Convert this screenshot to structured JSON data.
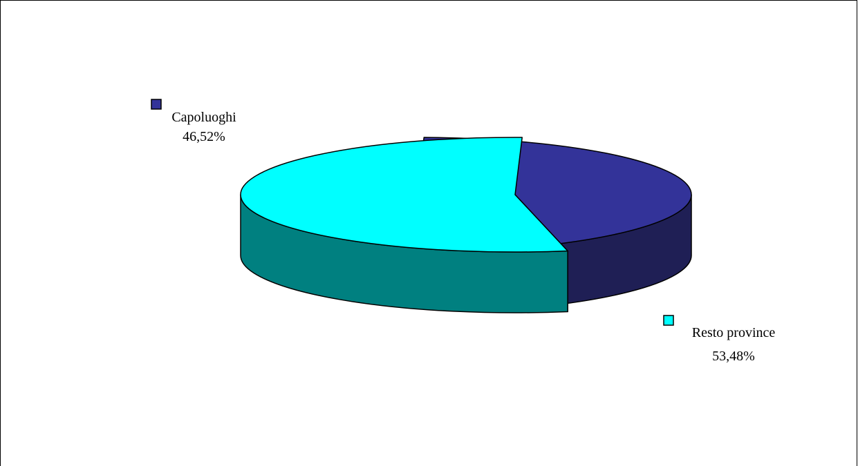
{
  "chart_data": {
    "type": "pie",
    "style": "3d-exploded",
    "legend": "none",
    "slices": [
      {
        "label": "Capoluoghi",
        "value": 46.52,
        "value_label": "46,52%",
        "top_color": "#333399",
        "side_color": "#1f1f55"
      },
      {
        "label": "Resto province",
        "value": 53.48,
        "value_label": "53,48%",
        "top_color": "#00ffff",
        "side_color": "#008080"
      }
    ]
  }
}
